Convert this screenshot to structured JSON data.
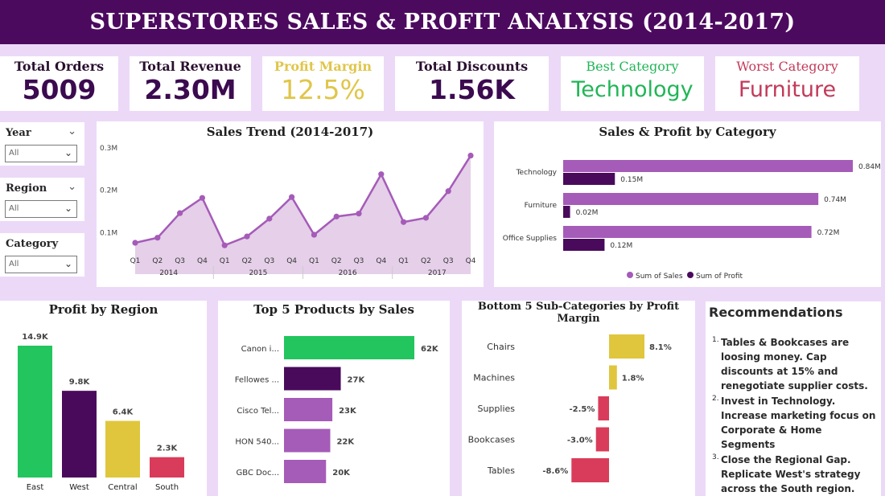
{
  "header": {
    "title": "SUPERSTORES SALES & PROFIT ANALYSIS (2014-2017)"
  },
  "kpis": [
    {
      "label": "Total Orders",
      "value": "5009",
      "color": "#3b0a4f"
    },
    {
      "label": "Total Revenue",
      "value": "2.30M",
      "color": "#3b0a4f"
    },
    {
      "label": "Profit Margin",
      "value": "12.5%",
      "color": "#e0c64a"
    },
    {
      "label": "Total Discounts",
      "value": "1.56K",
      "color": "#3b0a4f"
    },
    {
      "label": "Best Category",
      "value": "Technology",
      "color": "#22b557"
    },
    {
      "label": "Worst Category",
      "value": "Furniture",
      "color": "#c23a5a"
    }
  ],
  "slicers": [
    {
      "label": "Year",
      "value": "All"
    },
    {
      "label": "Region",
      "value": "All"
    },
    {
      "label": "Category",
      "value": "All"
    }
  ],
  "colors": {
    "header_bg": "#4c0a5f",
    "purple_dark": "#4a0a5c",
    "purple_light": "#a55bb8",
    "green": "#22c55e",
    "yellow": "#e0c63c",
    "red": "#d93c5a",
    "area_fill": "#e5cfe9"
  },
  "chart_data": [
    {
      "id": "sales_trend",
      "type": "area",
      "title": "Sales Trend (2014-2017)",
      "x": [
        "Q1",
        "Q2",
        "Q3",
        "Q4",
        "Q1",
        "Q2",
        "Q3",
        "Q4",
        "Q1",
        "Q2",
        "Q3",
        "Q4",
        "Q1",
        "Q2",
        "Q3",
        "Q4"
      ],
      "years": [
        "2014",
        "2015",
        "2016",
        "2017"
      ],
      "values": [
        0.074,
        0.086,
        0.144,
        0.18,
        0.068,
        0.089,
        0.131,
        0.182,
        0.093,
        0.136,
        0.143,
        0.236,
        0.123,
        0.133,
        0.196,
        0.28
      ],
      "yticks": [
        "0.1M",
        "0.2M",
        "0.3M"
      ],
      "ylim": [
        0,
        0.3
      ]
    },
    {
      "id": "sales_profit_category",
      "type": "bar",
      "title": "Sales & Profit by Category",
      "categories": [
        "Technology",
        "Furniture",
        "Office Supplies"
      ],
      "series": [
        {
          "name": "Sum of Sales",
          "values": [
            0.84,
            0.74,
            0.72
          ],
          "labels": [
            "0.84M",
            "0.74M",
            "0.72M"
          ]
        },
        {
          "name": "Sum of Profit",
          "values": [
            0.15,
            0.02,
            0.12
          ],
          "labels": [
            "0.15M",
            "0.02M",
            "0.12M"
          ]
        }
      ],
      "legend": "bottom"
    },
    {
      "id": "profit_region",
      "type": "bar",
      "title": "Profit by Region",
      "categories": [
        "East",
        "West",
        "Central",
        "South"
      ],
      "values": [
        14.9,
        9.8,
        6.4,
        2.3
      ],
      "labels": [
        "14.9K",
        "9.8K",
        "6.4K",
        "2.3K"
      ]
    },
    {
      "id": "top_products",
      "type": "bar",
      "title": "Top 5 Products by Sales",
      "categories": [
        "Canon i...",
        "Fellowes ...",
        "Cisco Tel...",
        "HON 540...",
        "GBC Doc..."
      ],
      "values": [
        62,
        27,
        23,
        22,
        20
      ],
      "labels": [
        "62K",
        "27K",
        "23K",
        "22K",
        "20K"
      ]
    },
    {
      "id": "bottom_subcats",
      "type": "bar",
      "title": "Bottom 5 Sub-Categories by Profit Margin",
      "categories": [
        "Chairs",
        "Machines",
        "Supplies",
        "Bookcases",
        "Tables"
      ],
      "values": [
        8.1,
        1.8,
        -2.5,
        -3.0,
        -8.6
      ],
      "labels": [
        "8.1%",
        "1.8%",
        "-2.5%",
        "-3.0%",
        "-8.6%"
      ]
    }
  ],
  "recommendations": {
    "title": "Recommendations",
    "items": [
      "Tables & Bookcases are loosing money. Cap discounts at 15% and renegotiate supplier costs.",
      "Invest in Technology. Increase marketing focus on Corporate & Home Segments",
      "Close the Regional Gap. Replicate West's strategy across the South region."
    ]
  }
}
